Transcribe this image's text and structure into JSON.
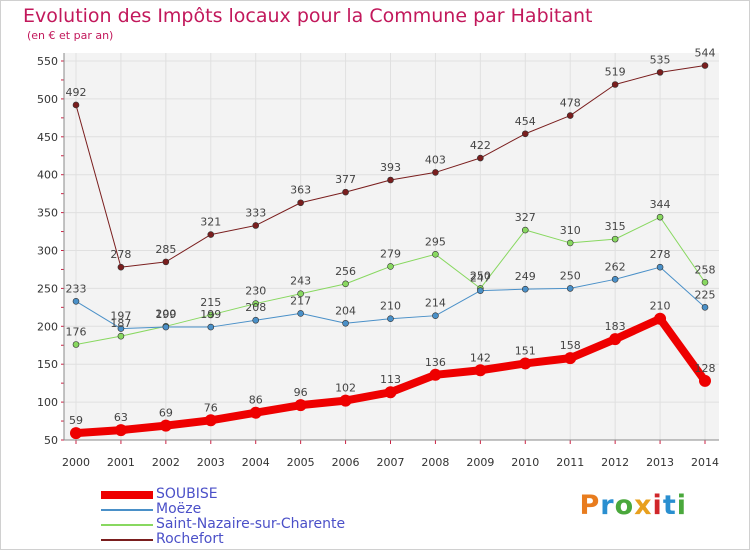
{
  "title": "Evolution des Impôts locaux pour la Commune par Habitant",
  "subtitle": "(en € et par an)",
  "logo": {
    "text": "Proxiti",
    "colors": [
      "#e87c1e",
      "#2a8fd0",
      "#4aa83c",
      "#e8a01e",
      "#d0262a",
      "#2a8fd0",
      "#4aa83c"
    ]
  },
  "chart_data": {
    "type": "line",
    "x": [
      2000,
      2001,
      2002,
      2003,
      2004,
      2005,
      2006,
      2007,
      2008,
      2009,
      2010,
      2011,
      2012,
      2013,
      2014
    ],
    "ylim": [
      50,
      550
    ],
    "yticks": [
      50,
      100,
      150,
      200,
      250,
      300,
      350,
      400,
      450,
      500,
      550
    ],
    "grid": true,
    "legend_position": "bottom-left",
    "series": [
      {
        "name": "SOUBISE",
        "color": "#ee0000",
        "values": [
          59,
          63,
          69,
          76,
          86,
          96,
          102,
          113,
          136,
          142,
          151,
          158,
          183,
          210,
          128
        ]
      },
      {
        "name": "Moëze",
        "color": "#4a90c8",
        "values": [
          233,
          197,
          199,
          199,
          208,
          217,
          204,
          210,
          214,
          247,
          249,
          250,
          262,
          278,
          225
        ]
      },
      {
        "name": "Saint-Nazaire-sur-Charente",
        "color": "#88d860",
        "values": [
          176,
          187,
          200,
          215,
          230,
          243,
          256,
          279,
          295,
          250,
          327,
          310,
          315,
          344,
          258
        ]
      },
      {
        "name": "Rochefort",
        "color": "#7a1e1e",
        "values": [
          492,
          278,
          285,
          321,
          333,
          363,
          377,
          393,
          403,
          422,
          454,
          478,
          519,
          535,
          544
        ]
      }
    ],
    "point_labels": [
      [
        "59",
        "63",
        "69",
        "76",
        "86",
        "96",
        "102",
        "113",
        "136",
        "142",
        "151",
        "158",
        "183",
        "210",
        "128"
      ],
      [
        "233",
        "197",
        "199",
        "199",
        "208",
        "217",
        "204",
        "210",
        "214",
        "247",
        "249",
        "250",
        "262",
        "278",
        "225"
      ],
      [
        "176",
        "187",
        "200",
        "215",
        "230",
        "243",
        "256",
        "279",
        "295",
        "250",
        "327",
        "310",
        "315",
        "344",
        "258"
      ],
      [
        "492",
        "278",
        "285",
        "321",
        "333",
        "363",
        "377",
        "393",
        "403",
        "422",
        "454",
        "478",
        "519",
        "535",
        "544"
      ]
    ]
  }
}
